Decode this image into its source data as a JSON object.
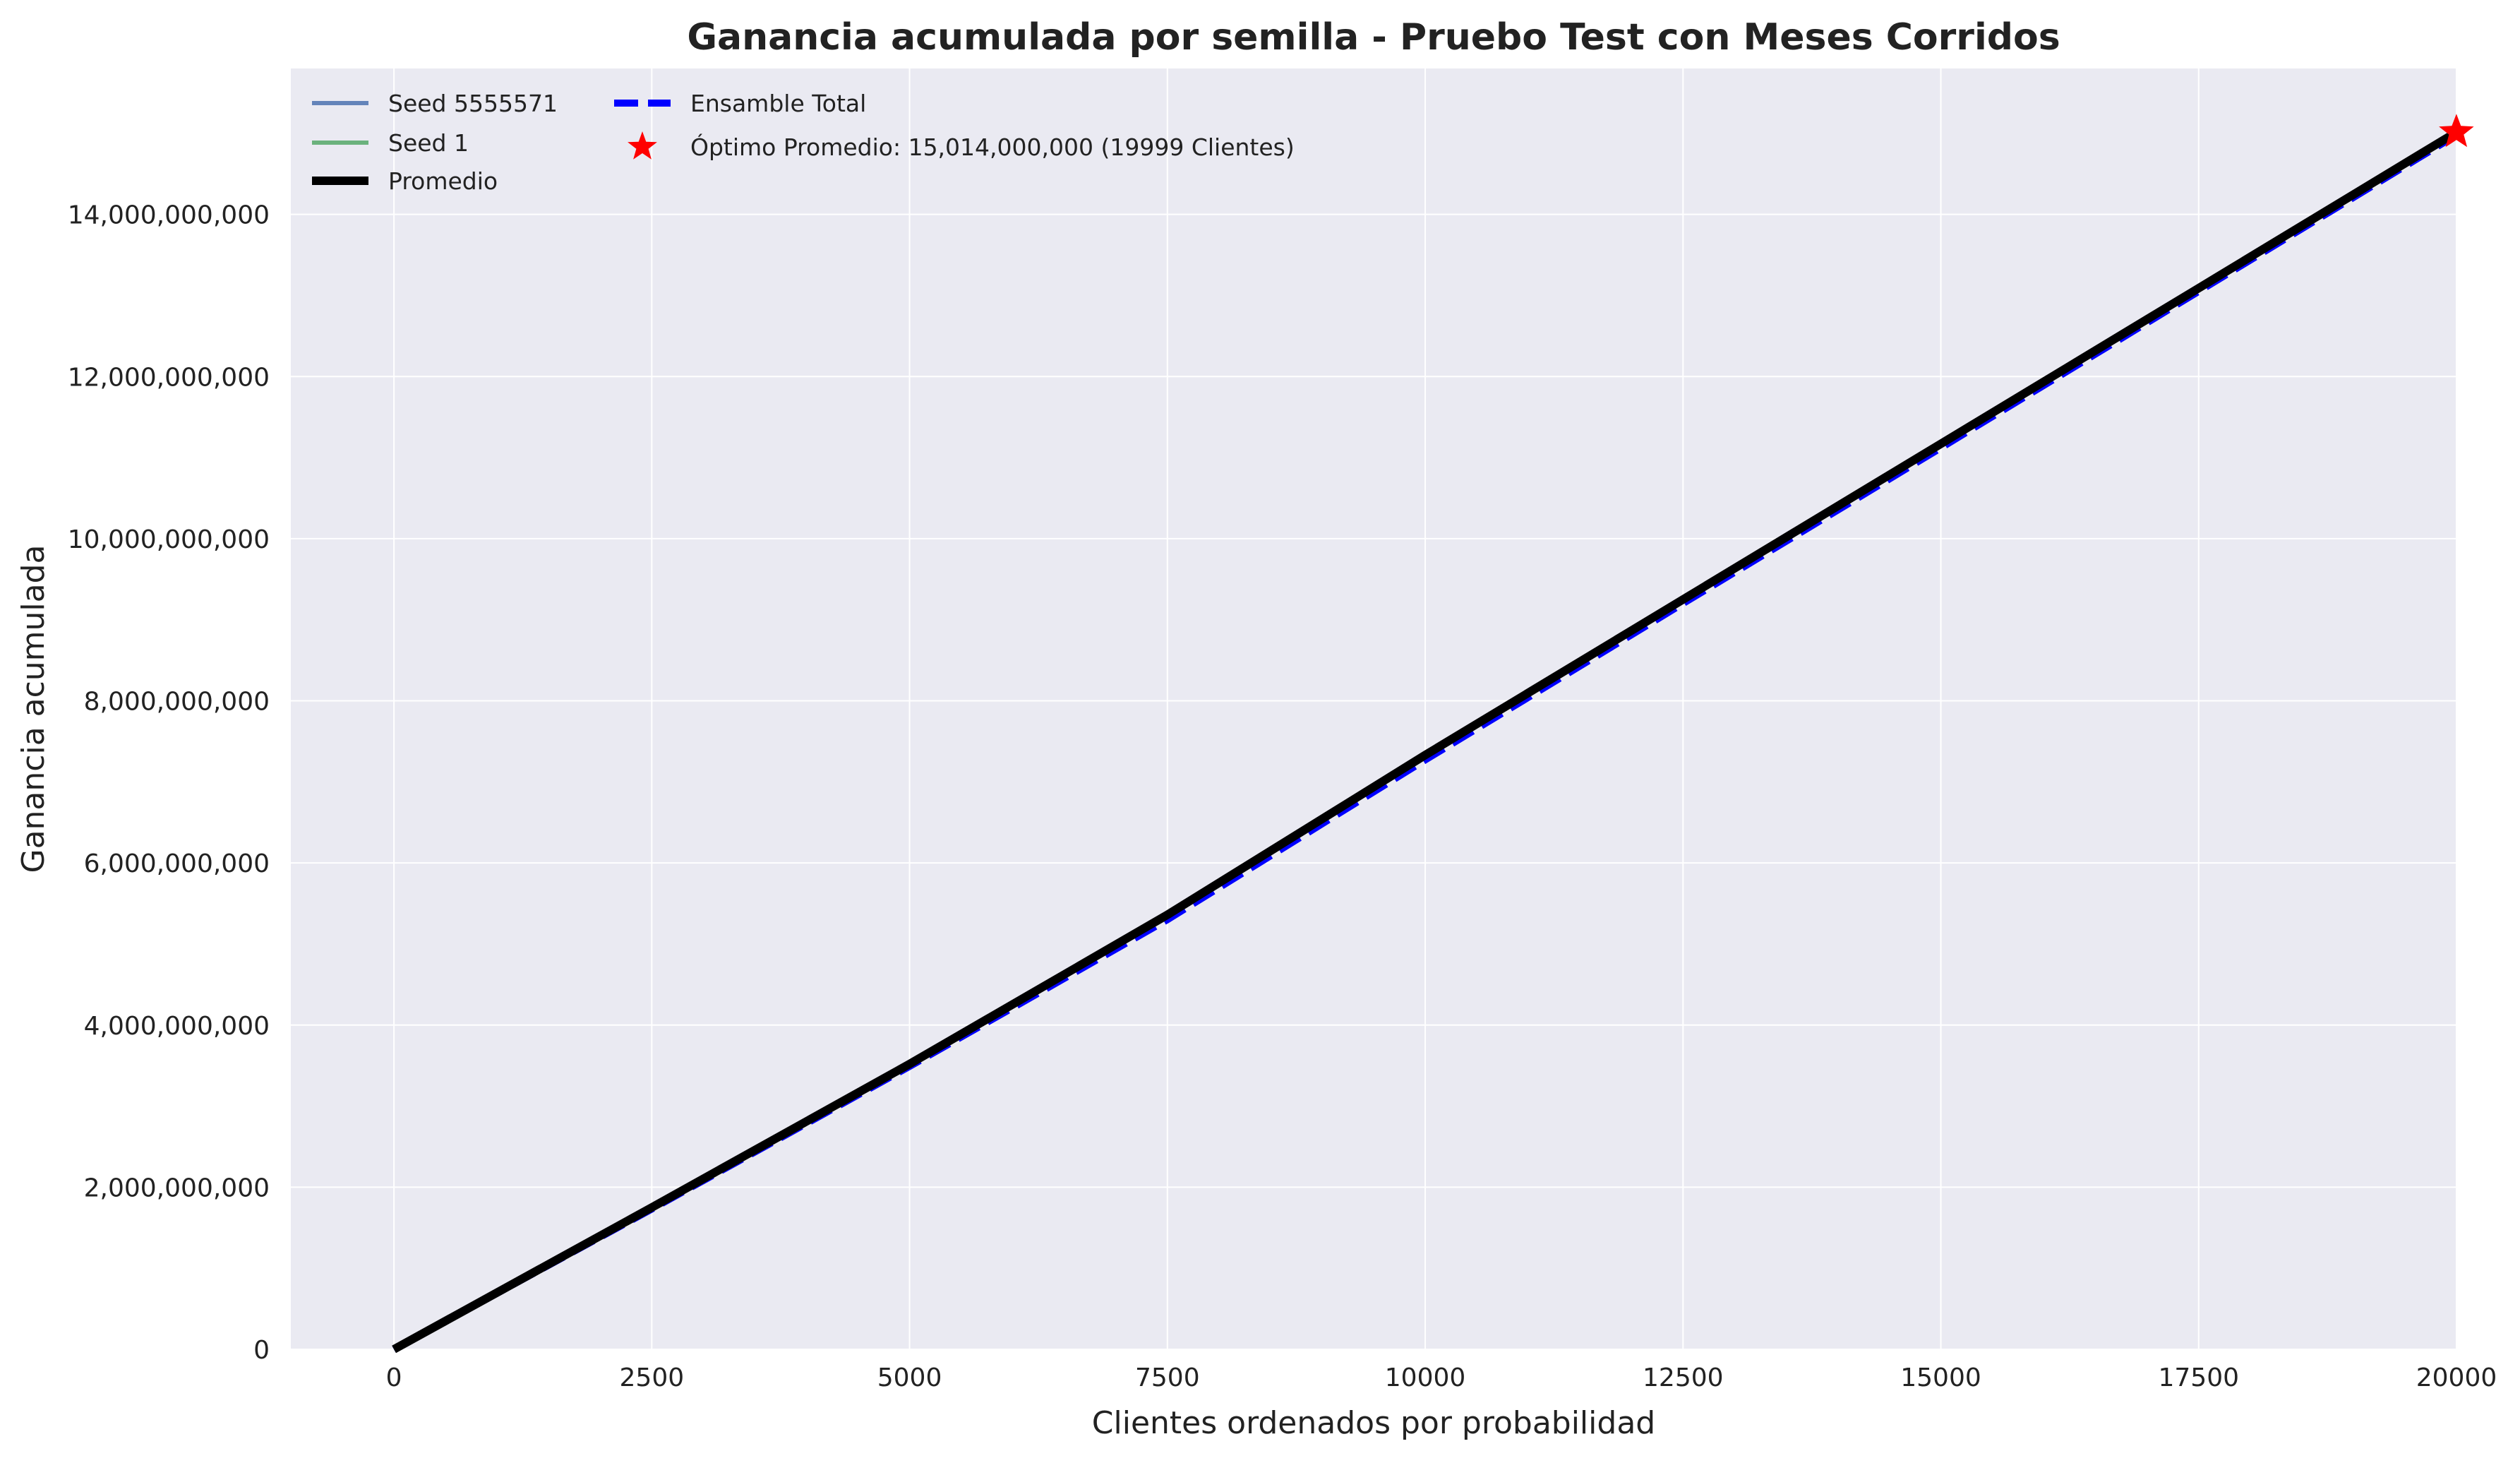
{
  "chart_data": {
    "type": "line",
    "title": "Ganancia acumulada por semilla - Pruebo Test con Meses Corridos",
    "xlabel": "Clientes ordenados por probabilidad",
    "ylabel": "Ganancia acumulada",
    "xlim": [
      -1000,
      20000
    ],
    "ylim": [
      0,
      15800000000
    ],
    "x_ticks": [
      0,
      2500,
      5000,
      7500,
      10000,
      12500,
      15000,
      17500,
      20000
    ],
    "x_tick_labels": [
      "0",
      "2500",
      "5000",
      "7500",
      "10000",
      "12500",
      "15000",
      "17500",
      "20000"
    ],
    "y_ticks": [
      0,
      2000000000,
      4000000000,
      6000000000,
      8000000000,
      10000000000,
      12000000000,
      14000000000
    ],
    "y_tick_labels": [
      "0",
      "2,000,000,000",
      "4,000,000,000",
      "6,000,000,000",
      "8,000,000,000",
      "10,000,000,000",
      "12,000,000,000",
      "14,000,000,000"
    ],
    "grid": true,
    "legend_position": "top-left",
    "background_color": "#eaeaf2",
    "series": [
      {
        "name": "Seed 5555571",
        "color": "#4c72b0",
        "style": "solid",
        "x": [
          0,
          2500,
          5000,
          7500,
          10000,
          12500,
          15000,
          17500,
          20000
        ],
        "y": [
          0,
          1740000000,
          3500000000,
          5330000000,
          7300000000,
          9230000000,
          11150000000,
          13080000000,
          15000000000
        ]
      },
      {
        "name": "Seed 1",
        "color": "#55a868",
        "style": "solid",
        "x": [
          0,
          2500,
          5000,
          7500,
          10000,
          12500,
          15000,
          17500,
          20000
        ],
        "y": [
          0,
          1750000000,
          3510000000,
          5350000000,
          7320000000,
          9250000000,
          11170000000,
          13090000000,
          15010000000
        ]
      },
      {
        "name": "Promedio",
        "color": "#000000",
        "style": "solid",
        "x": [
          0,
          2500,
          5000,
          7500,
          10000,
          12500,
          15000,
          17500,
          20000
        ],
        "y": [
          0,
          1750000000,
          3520000000,
          5360000000,
          7330000000,
          9250000000,
          11170000000,
          13090000000,
          15014000000
        ]
      },
      {
        "name": "Ensamble Total",
        "color": "#0000ff",
        "style": "dashed",
        "x": [
          0,
          2500,
          5000,
          7500,
          10000,
          12500,
          15000,
          17500,
          20000
        ],
        "y": [
          0,
          1730000000,
          3490000000,
          5300000000,
          7270000000,
          9200000000,
          11120000000,
          13050000000,
          14980000000
        ]
      }
    ],
    "optimum": {
      "label": "Óptimo Promedio: 15,014,000,000 (19999 Clientes)",
      "x": 19999,
      "y": 15014000000,
      "color": "#ff0000",
      "marker": "star"
    }
  }
}
